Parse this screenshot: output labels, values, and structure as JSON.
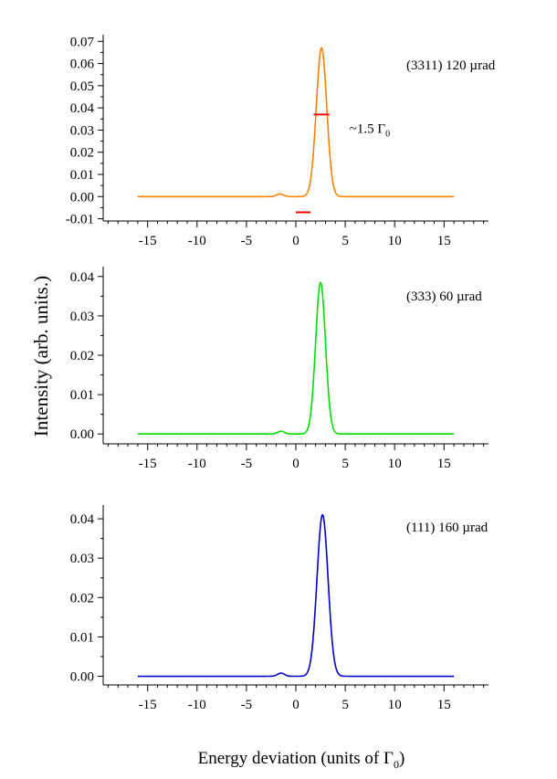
{
  "figure": {
    "ylabel": "Intensity (arb. units.)",
    "xlabel_main": "Energy deviation (units of Γ",
    "xlabel_sub": "0",
    "xlabel_close": ")"
  },
  "chart_data": [
    {
      "type": "line",
      "annotation": "(3311) 120 µrad",
      "color": "#ff8000",
      "xlim": [
        -19.5,
        19.5
      ],
      "xticks": [
        -15,
        -10,
        -5,
        0,
        5,
        10,
        15
      ],
      "ylim": [
        -0.011,
        0.073
      ],
      "yticks": [
        -0.01,
        0.0,
        0.01,
        0.02,
        0.03,
        0.04,
        0.05,
        0.06,
        0.07
      ],
      "ytick_labels": [
        "-0.01",
        "0.00",
        "0.01",
        "0.02",
        "0.03",
        "0.04",
        "0.05",
        "0.06",
        "0.07"
      ],
      "peak": {
        "center": 2.6,
        "height": 0.067,
        "sigma": 0.53
      },
      "bump": {
        "center": -1.6,
        "height": 0.0012,
        "sigma": 0.35
      },
      "x_range": [
        -16,
        16
      ],
      "series": [
        {
          "x": [
            -16,
            -10,
            -5,
            -3,
            -1.6,
            -0.5,
            1.0,
            1.8,
            2.2,
            2.6,
            3.0,
            3.4,
            4.2,
            6,
            10,
            16
          ],
          "y": [
            0,
            0,
            0,
            0.0001,
            0.0012,
            0.0003,
            0.0018,
            0.023,
            0.051,
            0.067,
            0.051,
            0.023,
            0.0018,
            0,
            0,
            0
          ]
        }
      ],
      "markers": [
        {
          "label": "~1.5 Γ",
          "label_sub": "0",
          "x0": 1.8,
          "x1": 3.4,
          "y": 0.037,
          "color": "#ff0000"
        },
        {
          "label": "",
          "x0": 0.0,
          "x1": 1.5,
          "y": -0.0071,
          "color": "#ff0000"
        }
      ]
    },
    {
      "type": "line",
      "annotation": "(333) 60 µrad",
      "color": "#00e000",
      "xlim": [
        -19.5,
        19.5
      ],
      "xticks": [
        -15,
        -10,
        -5,
        0,
        5,
        10,
        15
      ],
      "ylim": [
        -0.0025,
        0.0425
      ],
      "yticks": [
        0.0,
        0.01,
        0.02,
        0.03,
        0.04
      ],
      "ytick_labels": [
        "0.00",
        "0.01",
        "0.02",
        "0.03",
        "0.04"
      ],
      "peak": {
        "center": 2.5,
        "height": 0.0385,
        "sigma": 0.5
      },
      "bump": {
        "center": -1.5,
        "height": 0.0007,
        "sigma": 0.35
      },
      "x_range": [
        -16,
        16
      ],
      "series": [
        {
          "x": [
            -16,
            -10,
            -5,
            -3,
            -1.5,
            -0.5,
            1.0,
            1.8,
            2.2,
            2.5,
            2.8,
            3.2,
            4.0,
            6,
            10,
            16
          ],
          "y": [
            0,
            0,
            0,
            0.0001,
            0.0007,
            0.0002,
            0.0013,
            0.014,
            0.032,
            0.0385,
            0.032,
            0.014,
            0.0013,
            0,
            0,
            0
          ]
        }
      ]
    },
    {
      "type": "line",
      "annotation": "(111) 160 µrad",
      "color": "#0000cc",
      "xlim": [
        -19.5,
        19.5
      ],
      "xticks": [
        -15,
        -10,
        -5,
        0,
        5,
        10,
        15
      ],
      "ylim": [
        -0.0022,
        0.0435
      ],
      "yticks": [
        0.0,
        0.01,
        0.02,
        0.03,
        0.04
      ],
      "ytick_labels": [
        "0.00",
        "0.01",
        "0.02",
        "0.03",
        "0.04"
      ],
      "peak": {
        "center": 2.7,
        "height": 0.041,
        "sigma": 0.56
      },
      "bump": {
        "center": -1.5,
        "height": 0.0008,
        "sigma": 0.35
      },
      "x_range": [
        -16,
        16
      ],
      "series": [
        {
          "x": [
            -16,
            -10,
            -5,
            -3,
            -1.5,
            -0.5,
            1.0,
            1.9,
            2.3,
            2.7,
            3.1,
            3.5,
            4.4,
            6,
            10,
            16
          ],
          "y": [
            0,
            0,
            0,
            0.0001,
            0.0008,
            0.0002,
            0.0011,
            0.014,
            0.033,
            0.041,
            0.033,
            0.014,
            0.0011,
            0,
            0,
            0
          ]
        }
      ]
    }
  ]
}
